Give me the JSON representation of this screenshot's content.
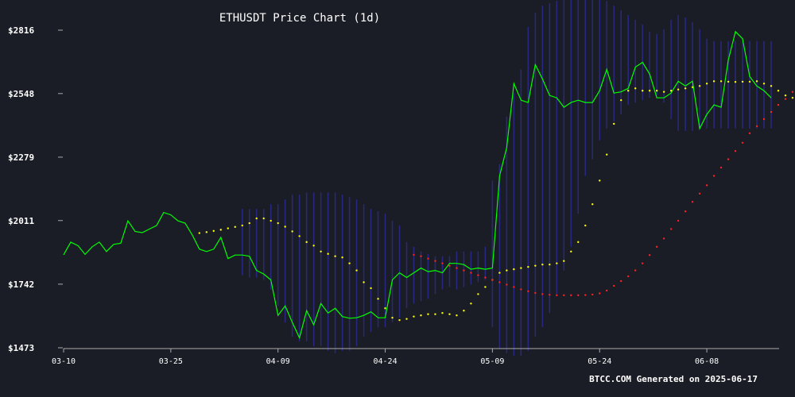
{
  "chart_data": {
    "type": "line",
    "title": "ETHUSDT Price Chart (1d)",
    "footer": "BTCC.COM Generated on 2025-06-17",
    "xlabel": "",
    "ylabel": "",
    "x_ticks": [
      {
        "label": "03-10",
        "day": 0
      },
      {
        "label": "03-25",
        "day": 15
      },
      {
        "label": "04-09",
        "day": 30
      },
      {
        "label": "04-24",
        "day": 45
      },
      {
        "label": "05-09",
        "day": 60
      },
      {
        "label": "05-24",
        "day": 75
      },
      {
        "label": "06-08",
        "day": 90
      }
    ],
    "y_ticks": [
      {
        "label": "$2816",
        "value": 2816
      },
      {
        "label": "$2548",
        "value": 2548
      },
      {
        "label": "$2279",
        "value": 2279
      },
      {
        "label": "$2011",
        "value": 2011
      },
      {
        "label": "$1742",
        "value": 1742
      },
      {
        "label": "$1473",
        "value": 1473
      }
    ],
    "xlim": [
      0,
      99
    ],
    "ylim": [
      1473,
      2816
    ],
    "colors": {
      "background": "#1b1d26",
      "price": "#00ff00",
      "ma_short": "#ffff00",
      "ma_long": "#ff2020",
      "band": "#2a2a8c",
      "axis": "#aaaaaa"
    },
    "series": [
      {
        "key": "price",
        "style": "line",
        "start_day": 0,
        "values": [
          1866,
          1920,
          1905,
          1868,
          1900,
          1920,
          1880,
          1910,
          1915,
          2010,
          1965,
          1960,
          1975,
          1990,
          2045,
          2035,
          2010,
          2000,
          1950,
          1890,
          1880,
          1890,
          1940,
          1850,
          1865,
          1865,
          1860,
          1800,
          1785,
          1760,
          1610,
          1650,
          1580,
          1515,
          1630,
          1570,
          1660,
          1620,
          1640,
          1605,
          1598,
          1600,
          1610,
          1625,
          1600,
          1600,
          1760,
          1790,
          1770,
          1790,
          1810,
          1795,
          1800,
          1790,
          1830,
          1830,
          1825,
          1805,
          1810,
          1805,
          1810,
          2200,
          2320,
          2590,
          2520,
          2510,
          2670,
          2610,
          2540,
          2530,
          2490,
          2510,
          2520,
          2510,
          2510,
          2560,
          2650,
          2550,
          2555,
          2570,
          2660,
          2680,
          2630,
          2530,
          2530,
          2550,
          2600,
          2580,
          2600,
          2400,
          2460,
          2500,
          2490,
          2690,
          2810,
          2780,
          2620,
          2580,
          2560,
          2530
        ]
      },
      {
        "key": "ma_short",
        "style": "dots",
        "start_day": 19,
        "values": [
          1958,
          1962,
          1967,
          1972,
          1978,
          1984,
          1990,
          2000,
          2020,
          2020,
          2010,
          2000,
          1985,
          1965,
          1945,
          1920,
          1905,
          1880,
          1870,
          1860,
          1855,
          1830,
          1800,
          1750,
          1725,
          1680,
          1640,
          1600,
          1590,
          1595,
          1605,
          1610,
          1615,
          1615,
          1620,
          1615,
          1610,
          1630,
          1660,
          1700,
          1730,
          1760,
          1790,
          1800,
          1805,
          1810,
          1815,
          1820,
          1825,
          1825,
          1830,
          1840,
          1880,
          1920,
          1990,
          2080,
          2180,
          2290,
          2420,
          2520,
          2560,
          2570,
          2560,
          2560,
          2560,
          2555,
          2560,
          2565,
          2570,
          2575,
          2580,
          2590,
          2600,
          2600,
          2598,
          2597,
          2598,
          2598,
          2600,
          2590,
          2580,
          2560,
          2540,
          2530,
          2540,
          2560,
          2590,
          2620,
          2650,
          2690,
          2690,
          2700,
          2680,
          2620
        ]
      },
      {
        "key": "ma_long",
        "style": "dots",
        "start_day": 49,
        "values": [
          1866,
          1860,
          1850,
          1840,
          1830,
          1820,
          1810,
          1800,
          1790,
          1780,
          1770,
          1760,
          1750,
          1740,
          1730,
          1720,
          1712,
          1705,
          1700,
          1697,
          1695,
          1695,
          1695,
          1695,
          1696,
          1698,
          1703,
          1715,
          1735,
          1755,
          1775,
          1800,
          1830,
          1865,
          1900,
          1935,
          1975,
          2010,
          2050,
          2090,
          2125,
          2160,
          2200,
          2235,
          2270,
          2305,
          2340,
          2380,
          2410,
          2440,
          2470,
          2500,
          2525,
          2555,
          2585,
          2610,
          2620,
          2625,
          2628,
          2630,
          2632,
          2633,
          2633,
          2634
        ]
      }
    ],
    "bands": [
      {
        "start_day": 25,
        "values": [
          [
            1780,
            2060
          ],
          [
            1770,
            2060
          ],
          [
            1770,
            2060
          ],
          [
            1760,
            2060
          ],
          [
            1720,
            2080
          ],
          [
            1650,
            2080
          ],
          [
            1580,
            2100
          ],
          [
            1520,
            2120
          ],
          [
            1500,
            2120
          ],
          [
            1500,
            2130
          ],
          [
            1480,
            2130
          ],
          [
            1480,
            2130
          ],
          [
            1460,
            2130
          ],
          [
            1450,
            2130
          ],
          [
            1460,
            2120
          ],
          [
            1460,
            2110
          ],
          [
            1480,
            2100
          ],
          [
            1520,
            2080
          ],
          [
            1540,
            2060
          ],
          [
            1560,
            2050
          ],
          [
            1560,
            2040
          ],
          [
            1580,
            2010
          ],
          [
            1600,
            1990
          ],
          [
            1640,
            1920
          ],
          [
            1660,
            1900
          ],
          [
            1670,
            1880
          ],
          [
            1680,
            1870
          ],
          [
            1700,
            1860
          ],
          [
            1720,
            1860
          ],
          [
            1730,
            1860
          ],
          [
            1720,
            1880
          ],
          [
            1730,
            1880
          ],
          [
            1740,
            1880
          ],
          [
            1750,
            1880
          ],
          [
            1760,
            1900
          ],
          [
            1560,
            2180
          ],
          [
            1470,
            2250
          ],
          [
            1450,
            2450
          ],
          [
            1440,
            2550
          ],
          [
            1440,
            2650
          ],
          [
            1460,
            2830
          ],
          [
            1520,
            2890
          ],
          [
            1560,
            2920
          ],
          [
            1620,
            2930
          ],
          [
            1700,
            2940
          ],
          [
            1800,
            2950
          ],
          [
            1900,
            2950
          ],
          [
            2040,
            2950
          ],
          [
            2200,
            2950
          ],
          [
            2270,
            2950
          ],
          [
            2350,
            2950
          ],
          [
            2400,
            2940
          ],
          [
            2430,
            2920
          ],
          [
            2460,
            2900
          ],
          [
            2500,
            2880
          ],
          [
            2510,
            2860
          ],
          [
            2520,
            2840
          ],
          [
            2530,
            2810
          ],
          [
            2540,
            2800
          ],
          [
            2510,
            2820
          ],
          [
            2440,
            2860
          ],
          [
            2390,
            2880
          ],
          [
            2390,
            2870
          ],
          [
            2390,
            2850
          ],
          [
            2400,
            2820
          ],
          [
            2400,
            2780
          ],
          [
            2400,
            2770
          ],
          [
            2400,
            2770
          ],
          [
            2400,
            2770
          ],
          [
            2400,
            2770
          ],
          [
            2400,
            2770
          ],
          [
            2400,
            2770
          ],
          [
            2400,
            2770
          ],
          [
            2400,
            2770
          ],
          [
            2400,
            2770
          ]
        ]
      }
    ]
  }
}
